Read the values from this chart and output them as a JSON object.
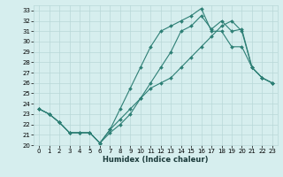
{
  "xlabel": "Humidex (Indice chaleur)",
  "ylabel": "",
  "bg_color": "#d6eeee",
  "line_color": "#2d7f75",
  "grid_color": "#b8d8d8",
  "xlim": [
    -0.5,
    23.5
  ],
  "ylim": [
    20,
    33.5
  ],
  "xticks": [
    0,
    1,
    2,
    3,
    4,
    5,
    6,
    7,
    8,
    9,
    10,
    11,
    12,
    13,
    14,
    15,
    16,
    17,
    18,
    19,
    20,
    21,
    22,
    23
  ],
  "yticks": [
    20,
    21,
    22,
    23,
    24,
    25,
    26,
    27,
    28,
    29,
    30,
    31,
    32,
    33
  ],
  "line1_y": [
    23.5,
    23.0,
    22.2,
    21.2,
    21.2,
    21.2,
    20.2,
    21.2,
    22.0,
    23.0,
    24.5,
    26.0,
    27.5,
    29.0,
    31.0,
    31.5,
    32.5,
    31.2,
    32.0,
    31.0,
    31.2,
    27.5,
    26.5,
    26.0
  ],
  "line2_y": [
    23.5,
    23.0,
    22.2,
    21.2,
    21.2,
    21.2,
    20.2,
    21.5,
    23.5,
    25.5,
    27.5,
    29.5,
    31.0,
    31.5,
    32.0,
    32.5,
    33.2,
    31.0,
    31.0,
    29.5,
    29.5,
    27.5,
    26.5,
    26.0
  ],
  "line3_y": [
    23.5,
    23.0,
    22.2,
    21.2,
    21.2,
    21.2,
    20.2,
    21.5,
    22.5,
    23.5,
    24.5,
    25.5,
    26.0,
    26.5,
    27.5,
    28.5,
    29.5,
    30.5,
    31.5,
    32.0,
    31.0,
    27.5,
    26.5,
    26.0
  ]
}
